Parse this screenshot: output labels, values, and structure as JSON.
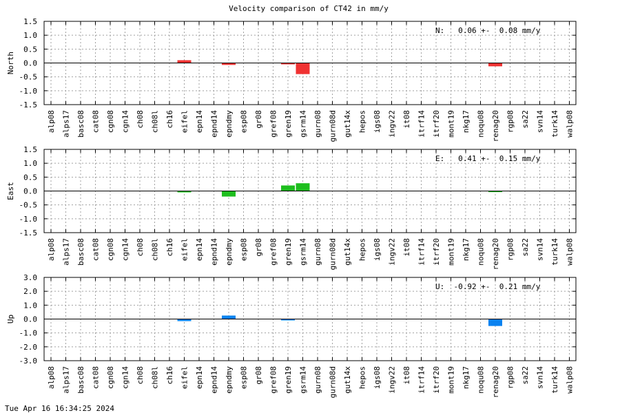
{
  "chart_data": {
    "type": "bar",
    "title": "Velocity comparison of CT42 in mm/y",
    "categories": [
      "alp08",
      "alps17",
      "basc08",
      "cat08",
      "cgn08",
      "cgn14",
      "ch08",
      "ch08l",
      "ch16",
      "eifel",
      "epn14",
      "epnd14",
      "epndmy",
      "esp08",
      "gr08",
      "gref08",
      "gren19",
      "gsrm14",
      "gurn08",
      "gurn08d",
      "gut14x",
      "hepos",
      "igs08",
      "ingv22",
      "it08",
      "itrf14",
      "itrf20",
      "mont19",
      "nkg17",
      "noqu08",
      "renag20",
      "rgp08",
      "sa22",
      "svn14",
      "turk14",
      "walp08"
    ],
    "grid": true,
    "panels": [
      {
        "id": "north",
        "ylabel": "North",
        "ylim": [
          -1.5,
          1.5
        ],
        "yticks": [
          "1.5",
          "1.0",
          "0.5",
          "0.0",
          "-0.5",
          "-1.0",
          "-1.5"
        ],
        "ytick_values": [
          1.5,
          1.0,
          0.5,
          0.0,
          -0.5,
          -1.0,
          -1.5
        ],
        "color": "#f03232",
        "stat": "N:   0.06 +-  0.08 mm/y",
        "values": [
          0,
          0,
          0,
          0,
          0,
          0,
          0,
          0,
          0,
          0.1,
          0,
          0,
          -0.07,
          0,
          0,
          0,
          -0.05,
          -0.4,
          0,
          0,
          0,
          0,
          0,
          0,
          0,
          0,
          0,
          0,
          0,
          0,
          -0.12,
          0,
          0,
          0,
          0,
          0
        ]
      },
      {
        "id": "east",
        "ylabel": "East",
        "ylim": [
          -1.5,
          1.5
        ],
        "yticks": [
          "1.5",
          "1.0",
          "0.5",
          "0.0",
          "-0.5",
          "-1.0",
          "-1.5"
        ],
        "ytick_values": [
          1.5,
          1.0,
          0.5,
          0.0,
          -0.5,
          -1.0,
          -1.5
        ],
        "color": "#1ebe1e",
        "stat": "E:   0.41 +-  0.15 mm/y",
        "values": [
          0,
          0,
          0,
          0,
          0,
          0,
          0,
          0,
          0,
          -0.05,
          0,
          0,
          -0.2,
          0,
          0,
          0,
          0.2,
          0.28,
          0,
          0,
          0,
          0,
          0,
          0,
          0,
          0,
          0,
          0,
          0,
          0,
          -0.04,
          0,
          0,
          0,
          0,
          0
        ]
      },
      {
        "id": "up",
        "ylabel": "Up",
        "ylim": [
          -3.0,
          3.0
        ],
        "yticks": [
          "3.0",
          "2.0",
          "1.0",
          "0.0",
          "-1.0",
          "-2.0",
          "-3.0"
        ],
        "ytick_values": [
          3.0,
          2.0,
          1.0,
          0.0,
          -1.0,
          -2.0,
          -3.0
        ],
        "color": "#0a82f0",
        "stat": "U:  -0.92 +-  0.21 mm/y",
        "values": [
          0,
          0,
          0,
          0,
          0,
          0,
          0,
          0,
          0,
          -0.15,
          0,
          0,
          0.25,
          0,
          0,
          0,
          -0.1,
          0,
          0,
          0,
          0,
          0,
          0,
          0,
          0,
          0,
          0,
          0,
          0,
          0,
          -0.5,
          0,
          0,
          0,
          0,
          0
        ]
      }
    ]
  },
  "footer": {
    "timestamp": "Tue Apr 16 16:34:25 2024"
  }
}
